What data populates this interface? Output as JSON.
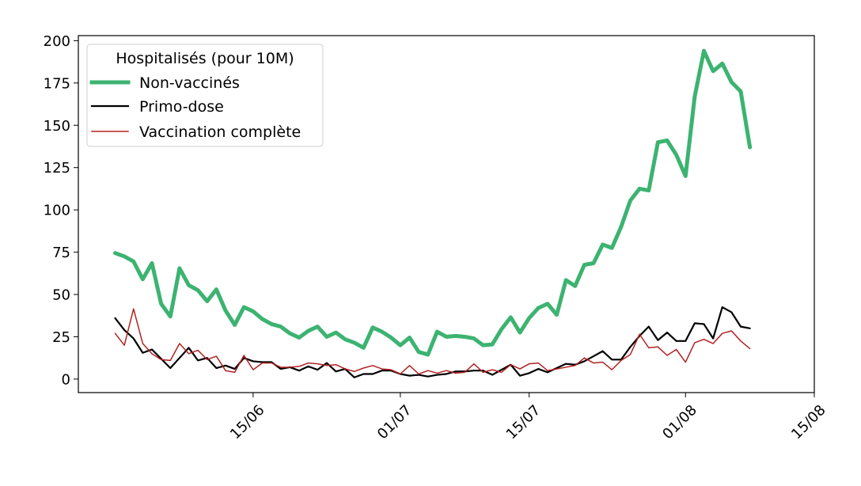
{
  "chart_data": {
    "type": "line",
    "title": "",
    "xlabel": "",
    "ylabel": "",
    "legend": {
      "title": "Hospitalisés (pour 10M)",
      "placement": "upper-left"
    },
    "x_tick_labels": [
      "15/06",
      "01/07",
      "15/07",
      "01/08",
      "15/08"
    ],
    "y_tick_labels": [
      "0",
      "25",
      "50",
      "75",
      "100",
      "125",
      "150",
      "175",
      "200"
    ],
    "x_tick_dates": [
      "2021-06-15",
      "2021-07-01",
      "2021-07-15",
      "2021-08-01",
      "2021-08-15"
    ],
    "y_ticks": [
      0,
      25,
      50,
      75,
      100,
      125,
      150,
      175,
      200
    ],
    "xlim": [
      "2021-05-27",
      "2021-08-15"
    ],
    "ylim": [
      -8,
      203
    ],
    "grid": false,
    "x": [
      "2021-05-31",
      "2021-06-01",
      "2021-06-02",
      "2021-06-03",
      "2021-06-04",
      "2021-06-05",
      "2021-06-06",
      "2021-06-07",
      "2021-06-08",
      "2021-06-09",
      "2021-06-10",
      "2021-06-11",
      "2021-06-12",
      "2021-06-13",
      "2021-06-14",
      "2021-06-15",
      "2021-06-16",
      "2021-06-17",
      "2021-06-18",
      "2021-06-19",
      "2021-06-20",
      "2021-06-21",
      "2021-06-22",
      "2021-06-23",
      "2021-06-24",
      "2021-06-25",
      "2021-06-26",
      "2021-06-27",
      "2021-06-28",
      "2021-06-29",
      "2021-06-30",
      "2021-07-01",
      "2021-07-02",
      "2021-07-03",
      "2021-07-04",
      "2021-07-05",
      "2021-07-06",
      "2021-07-07",
      "2021-07-08",
      "2021-07-09",
      "2021-07-10",
      "2021-07-11",
      "2021-07-12",
      "2021-07-13",
      "2021-07-14",
      "2021-07-15",
      "2021-07-16",
      "2021-07-17",
      "2021-07-18",
      "2021-07-19",
      "2021-07-20",
      "2021-07-21",
      "2021-07-22",
      "2021-07-23",
      "2021-07-24",
      "2021-07-25",
      "2021-07-26",
      "2021-07-27",
      "2021-07-28",
      "2021-07-29",
      "2021-07-30",
      "2021-07-31",
      "2021-08-01",
      "2021-08-02",
      "2021-08-03",
      "2021-08-04",
      "2021-08-05",
      "2021-08-06",
      "2021-08-07",
      "2021-08-08"
    ],
    "series": [
      {
        "name": "Non-vaccinés",
        "color": "#3cb371",
        "values": [
          74.5,
          72.5,
          69.5,
          59,
          68.5,
          44.5,
          37,
          65.5,
          55.5,
          52.5,
          46,
          53,
          40.5,
          32,
          42.5,
          40,
          35.5,
          32.5,
          31,
          27,
          24.5,
          28.5,
          31,
          25,
          27.5,
          23.5,
          21.5,
          18.5,
          30.5,
          28,
          24.5,
          20,
          24.5,
          16,
          14.5,
          28,
          25,
          25.5,
          25,
          24,
          20,
          20.5,
          29.5,
          36.5,
          27.5,
          36,
          42,
          44.5,
          38,
          58.5,
          55,
          67.5,
          68.5,
          79.5,
          77.5,
          90,
          105.5,
          112.5,
          111.5,
          140,
          141,
          132.5,
          120,
          167,
          194,
          182,
          186.5,
          175.5,
          170,
          137
        ]
      },
      {
        "name": "Primo-dose",
        "color": "#000000",
        "values": [
          36,
          29,
          24,
          15.5,
          17.5,
          12,
          6.5,
          12.5,
          18.5,
          11,
          12.5,
          6.5,
          8,
          6,
          12.5,
          10.5,
          10,
          10,
          6,
          7,
          5,
          7.5,
          5.5,
          9.5,
          4.5,
          6,
          1,
          3,
          3,
          5,
          5,
          3,
          2,
          2.5,
          1.5,
          2.5,
          3,
          4.5,
          4.5,
          5,
          5,
          2.5,
          5.5,
          8.5,
          2,
          3.5,
          6,
          4,
          6.5,
          9,
          8.5,
          10.5,
          13.5,
          16.5,
          11.5,
          11.5,
          19,
          25.5,
          31,
          23,
          27.5,
          22.5,
          22.5,
          33,
          32.5,
          24,
          42.5,
          39.5,
          31,
          30
        ]
      },
      {
        "name": "Vaccination complète",
        "color": "#b22222",
        "values": [
          27,
          20,
          41.5,
          21,
          15,
          11.5,
          11,
          21,
          15,
          17,
          11.5,
          13.5,
          5,
          4,
          14,
          5.5,
          9.5,
          9.5,
          7,
          7,
          7.5,
          9.5,
          9,
          8,
          8.5,
          6,
          4.5,
          6.5,
          8,
          6,
          5.5,
          3,
          8,
          3,
          5,
          3.5,
          5,
          3.5,
          4,
          9,
          4,
          5.5,
          4,
          8.5,
          6,
          9,
          9.5,
          5,
          6,
          7,
          8,
          12.5,
          9.5,
          10,
          5.5,
          11,
          14.5,
          26.5,
          18.5,
          19,
          14,
          17.5,
          10,
          21.5,
          23.5,
          21,
          27,
          28.5,
          22.5,
          18
        ]
      }
    ]
  }
}
